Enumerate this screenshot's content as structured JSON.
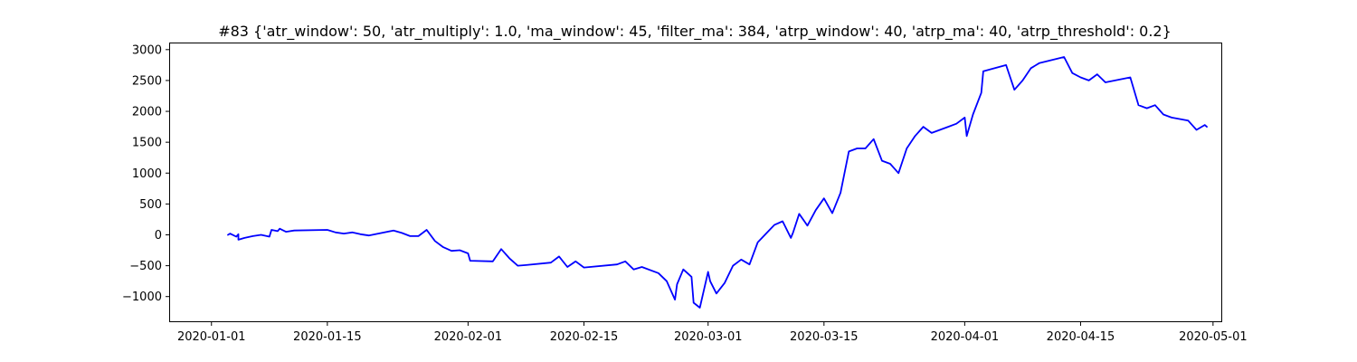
{
  "chart_data": {
    "type": "line",
    "title": "#83 {'atr_window': 50, 'atr_multiply': 1.0, 'ma_window': 45, 'filter_ma': 384, 'atrp_window': 40, 'atrp_ma': 40, 'atrp_threshold': 0.2}",
    "xlabel": "",
    "ylabel": "",
    "x_ticks": [
      "2020-01-01",
      "2020-01-15",
      "2020-02-01",
      "2020-02-15",
      "2020-03-01",
      "2020-03-15",
      "2020-04-01",
      "2020-04-15",
      "2020-05-01"
    ],
    "y_ticks": [
      -1000,
      -500,
      0,
      500,
      1000,
      1500,
      2000,
      2500,
      3000
    ],
    "xlim": [
      "2019-12-27",
      "2020-05-02"
    ],
    "ylim": [
      -1400,
      3100
    ],
    "grid": false,
    "series_color": "#0000ff",
    "series": [
      {
        "x": [
          "2020-01-03",
          "2020-01-03",
          "2020-01-04",
          "2020-01-04",
          "2020-01-04",
          "2020-01-05",
          "2020-01-06",
          "2020-01-07",
          "2020-01-08",
          "2020-01-08",
          "2020-01-09",
          "2020-01-09",
          "2020-01-10",
          "2020-01-11",
          "2020-01-15",
          "2020-01-16",
          "2020-01-17",
          "2020-01-18",
          "2020-01-19",
          "2020-01-20",
          "2020-01-23",
          "2020-01-24",
          "2020-01-25",
          "2020-01-26",
          "2020-01-27",
          "2020-01-28",
          "2020-01-29",
          "2020-01-30",
          "2020-01-31",
          "2020-02-01",
          "2020-02-01",
          "2020-02-04",
          "2020-02-05",
          "2020-02-06",
          "2020-02-07",
          "2020-02-08",
          "2020-02-11",
          "2020-02-12",
          "2020-02-13",
          "2020-02-14",
          "2020-02-15",
          "2020-02-19",
          "2020-02-20",
          "2020-02-21",
          "2020-02-22",
          "2020-02-24",
          "2020-02-25",
          "2020-02-26",
          "2020-02-26",
          "2020-02-27",
          "2020-02-28",
          "2020-02-28",
          "2020-02-29",
          "2020-03-01",
          "2020-03-01",
          "2020-03-02",
          "2020-03-03",
          "2020-03-04",
          "2020-03-05",
          "2020-03-06",
          "2020-03-07",
          "2020-03-09",
          "2020-03-10",
          "2020-03-11",
          "2020-03-11",
          "2020-03-12",
          "2020-03-13",
          "2020-03-14",
          "2020-03-15",
          "2020-03-16",
          "2020-03-17",
          "2020-03-18",
          "2020-03-19",
          "2020-03-20",
          "2020-03-21",
          "2020-03-22",
          "2020-03-23",
          "2020-03-24",
          "2020-03-25",
          "2020-03-26",
          "2020-03-27",
          "2020-03-28",
          "2020-03-30",
          "2020-03-31",
          "2020-04-01",
          "2020-04-01",
          "2020-04-02",
          "2020-04-03",
          "2020-04-03",
          "2020-04-06",
          "2020-04-07",
          "2020-04-08",
          "2020-04-09",
          "2020-04-10",
          "2020-04-13",
          "2020-04-14",
          "2020-04-15",
          "2020-04-16",
          "2020-04-17",
          "2020-04-18",
          "2020-04-21",
          "2020-04-22",
          "2020-04-23",
          "2020-04-24",
          "2020-04-25",
          "2020-04-26",
          "2020-04-28",
          "2020-04-29",
          "2020-04-30",
          "2020-04-30"
        ],
        "values": [
          0,
          20,
          -30,
          10,
          -80,
          -50,
          -20,
          0,
          -30,
          80,
          60,
          100,
          50,
          70,
          80,
          40,
          20,
          40,
          10,
          -10,
          70,
          30,
          -20,
          -20,
          80,
          -100,
          -200,
          -260,
          -250,
          -300,
          -420,
          -430,
          -230,
          -380,
          -500,
          -490,
          -450,
          -350,
          -520,
          -430,
          -530,
          -480,
          -430,
          -560,
          -520,
          -620,
          -750,
          -1050,
          -800,
          -560,
          -680,
          -1100,
          -1180,
          -600,
          -750,
          -950,
          -780,
          -500,
          -400,
          -480,
          -120,
          160,
          220,
          -50,
          30,
          340,
          150,
          400,
          590,
          350,
          680,
          1350,
          1400,
          1400,
          1550,
          1200,
          1150,
          1000,
          1400,
          1600,
          1750,
          1650,
          1750,
          1800,
          1900,
          1600,
          1950,
          2300,
          2650,
          2750,
          2350,
          2500,
          2700,
          2780,
          2880,
          2620,
          2550,
          2500,
          2600,
          2470,
          2550,
          2100,
          2050,
          2100,
          1950,
          1900,
          1850,
          1700,
          1780,
          1750
        ]
      }
    ]
  }
}
